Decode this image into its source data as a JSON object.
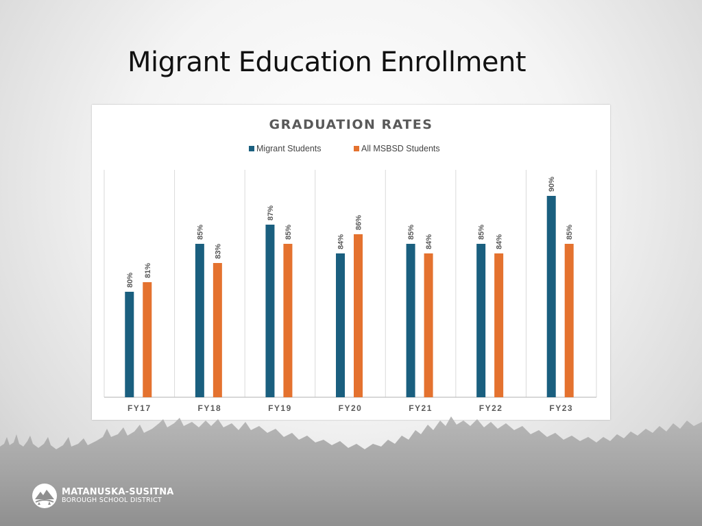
{
  "slide": {
    "title": "Migrant Education Enrollment"
  },
  "logo": {
    "line1": "MATANUSKA-SUSITNA",
    "line2": "BOROUGH SCHOOL DISTRICT"
  },
  "chart_data": {
    "type": "bar",
    "title": "GRADUATION RATES",
    "categories": [
      "FY17",
      "FY18",
      "FY19",
      "FY20",
      "FY21",
      "FY22",
      "FY23"
    ],
    "series": [
      {
        "name": "Migrant Students",
        "values": [
          80,
          85,
          87,
          84,
          85,
          85,
          90
        ],
        "color": "#1a5f7f"
      },
      {
        "name": "All MSBSD Students",
        "values": [
          81,
          83,
          85,
          86,
          84,
          84,
          85
        ],
        "color": "#e4722f"
      }
    ],
    "value_suffix": "%",
    "ylim": [
      69,
      90
    ],
    "grid": "vertical category separators",
    "legend_placement": "top-center"
  }
}
